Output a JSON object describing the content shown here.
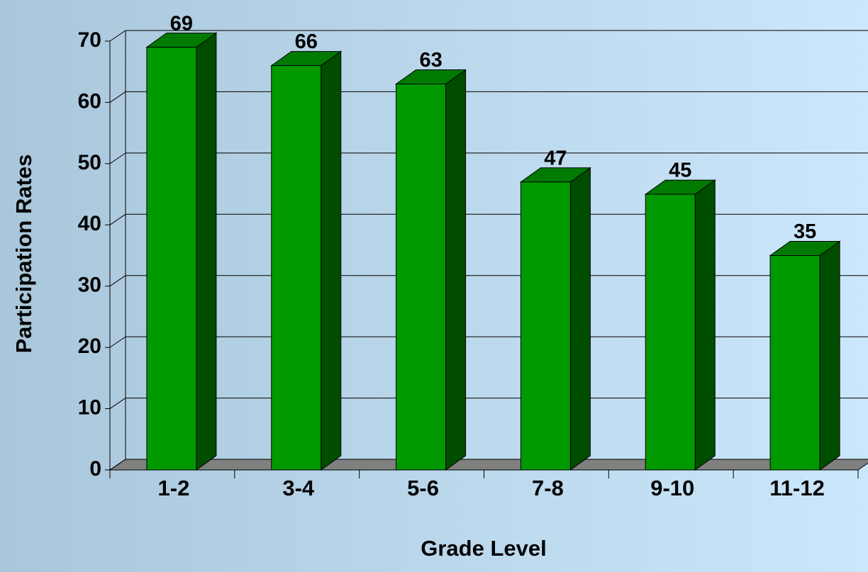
{
  "chart_data": {
    "type": "bar",
    "x_label": "Grade Level",
    "y_label": "Participation Rates",
    "categories": [
      "1-2",
      "3-4",
      "5-6",
      "7-8",
      "9-10",
      "11-12"
    ],
    "values": [
      69,
      66,
      63,
      47,
      45,
      35
    ],
    "color": "#009900",
    "ylim": [
      0,
      70
    ],
    "yticks": [
      0,
      10,
      20,
      30,
      40,
      50,
      60,
      70
    ],
    "grid": true
  }
}
